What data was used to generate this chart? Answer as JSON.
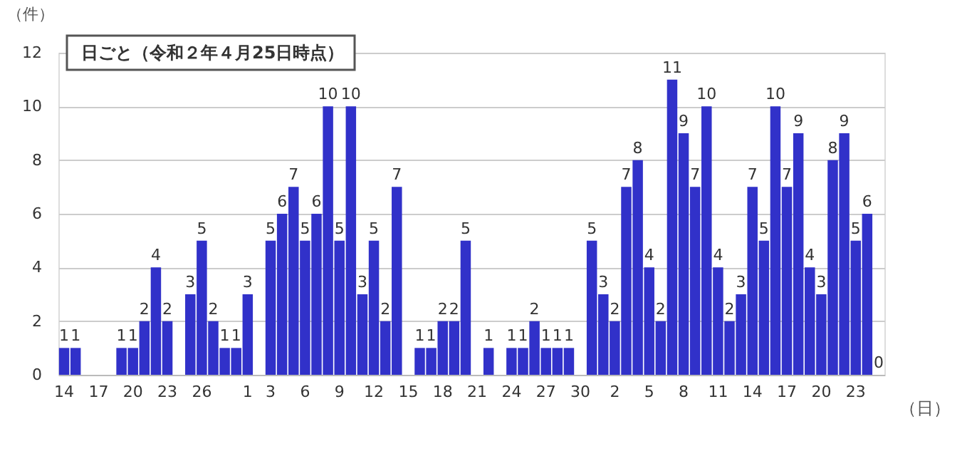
{
  "chart_data": {
    "type": "bar",
    "title": "日ごと（令和２年４月25日時点）",
    "ylabel": "（件）",
    "xlabel": "（日）",
    "categories": [
      "14",
      null,
      null,
      "17",
      null,
      null,
      "20",
      null,
      null,
      "23",
      null,
      null,
      "26",
      null,
      null,
      null,
      "1",
      null,
      "3",
      null,
      null,
      "6",
      null,
      null,
      "9",
      null,
      null,
      "12",
      null,
      null,
      "15",
      null,
      null,
      "18",
      null,
      null,
      "21",
      null,
      null,
      "24",
      null,
      null,
      "27",
      null,
      null,
      "30",
      null,
      null,
      "2",
      null,
      null,
      "5",
      null,
      null,
      "8",
      null,
      null,
      "11",
      null,
      null,
      "14",
      null,
      null,
      "17",
      null,
      null,
      "20",
      null,
      null,
      "23",
      null,
      null
    ],
    "values": [
      1,
      1,
      null,
      null,
      null,
      1,
      1,
      2,
      4,
      2,
      null,
      3,
      5,
      2,
      1,
      1,
      3,
      null,
      5,
      6,
      7,
      5,
      6,
      10,
      5,
      10,
      3,
      5,
      2,
      7,
      null,
      1,
      1,
      2,
      2,
      5,
      null,
      1,
      null,
      1,
      1,
      2,
      1,
      1,
      1,
      null,
      5,
      3,
      2,
      7,
      8,
      4,
      2,
      11,
      9,
      7,
      10,
      4,
      2,
      3,
      7,
      5,
      10,
      7,
      9,
      4,
      3,
      8,
      9,
      5,
      6,
      0
    ],
    "color": "#3131c9",
    "ylim": [
      0,
      12
    ],
    "yticks": [
      0,
      2,
      4,
      6,
      8,
      10,
      12
    ],
    "grid": "y",
    "data_labels": true
  }
}
